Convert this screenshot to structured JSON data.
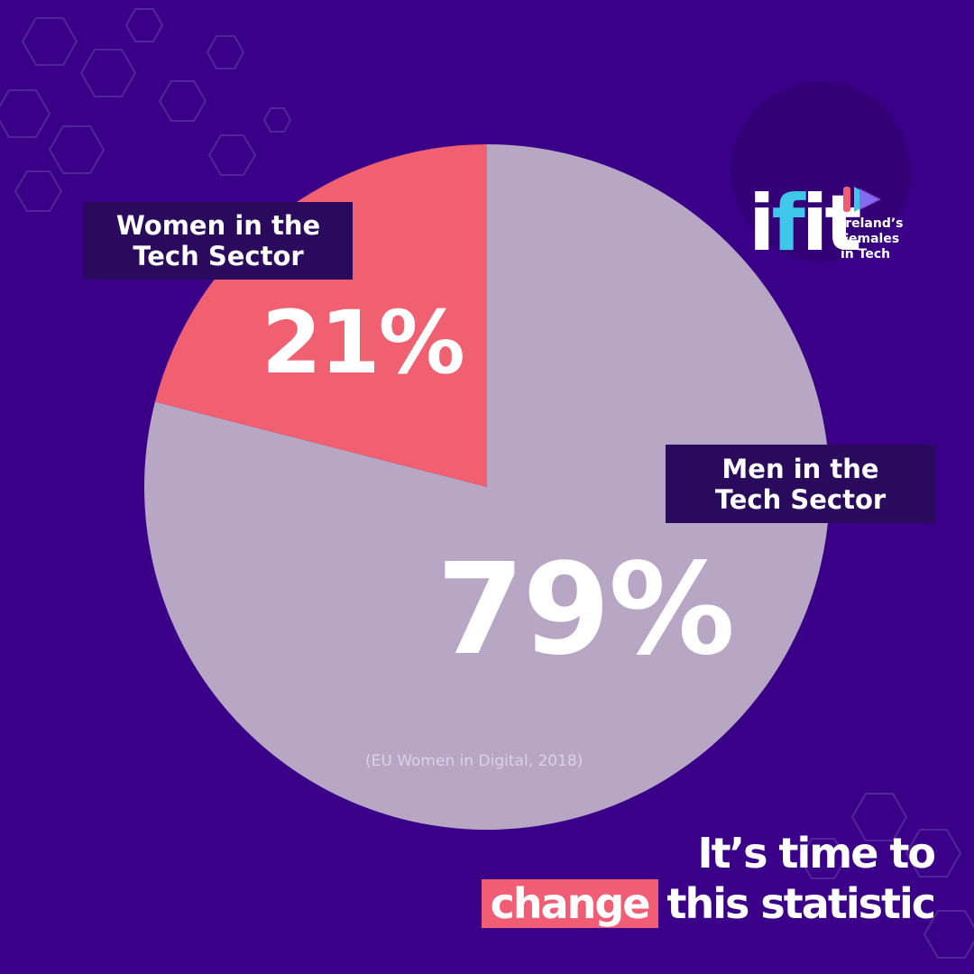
{
  "chart_data": {
    "type": "pie",
    "slices": [
      {
        "label_line1": "Women in the",
        "label_line2": "Tech Sector",
        "value": 21,
        "value_label": "21%",
        "color": "#f06070"
      },
      {
        "label_line1": "Men in the",
        "label_line2": "Tech Sector",
        "value": 79,
        "value_label": "79%",
        "color": "#b7a6c4"
      }
    ],
    "source": "(EU Women in Digital, 2018)"
  },
  "logo": {
    "letters_plain_1": "i",
    "letters_accent": "f",
    "letters_plain_2": "it",
    "line1": "Ireland’s",
    "line2": "Females",
    "line3": "in Tech",
    "icon": "play-icon"
  },
  "tagline": {
    "line1": "It’s time to",
    "highlight": "change",
    "line2_rest": "this statistic"
  },
  "colors": {
    "background": "#3a0088",
    "label_box": "#2a0a5c",
    "highlight": "#f05d74",
    "accent_cyan": "#3ec7e8"
  }
}
